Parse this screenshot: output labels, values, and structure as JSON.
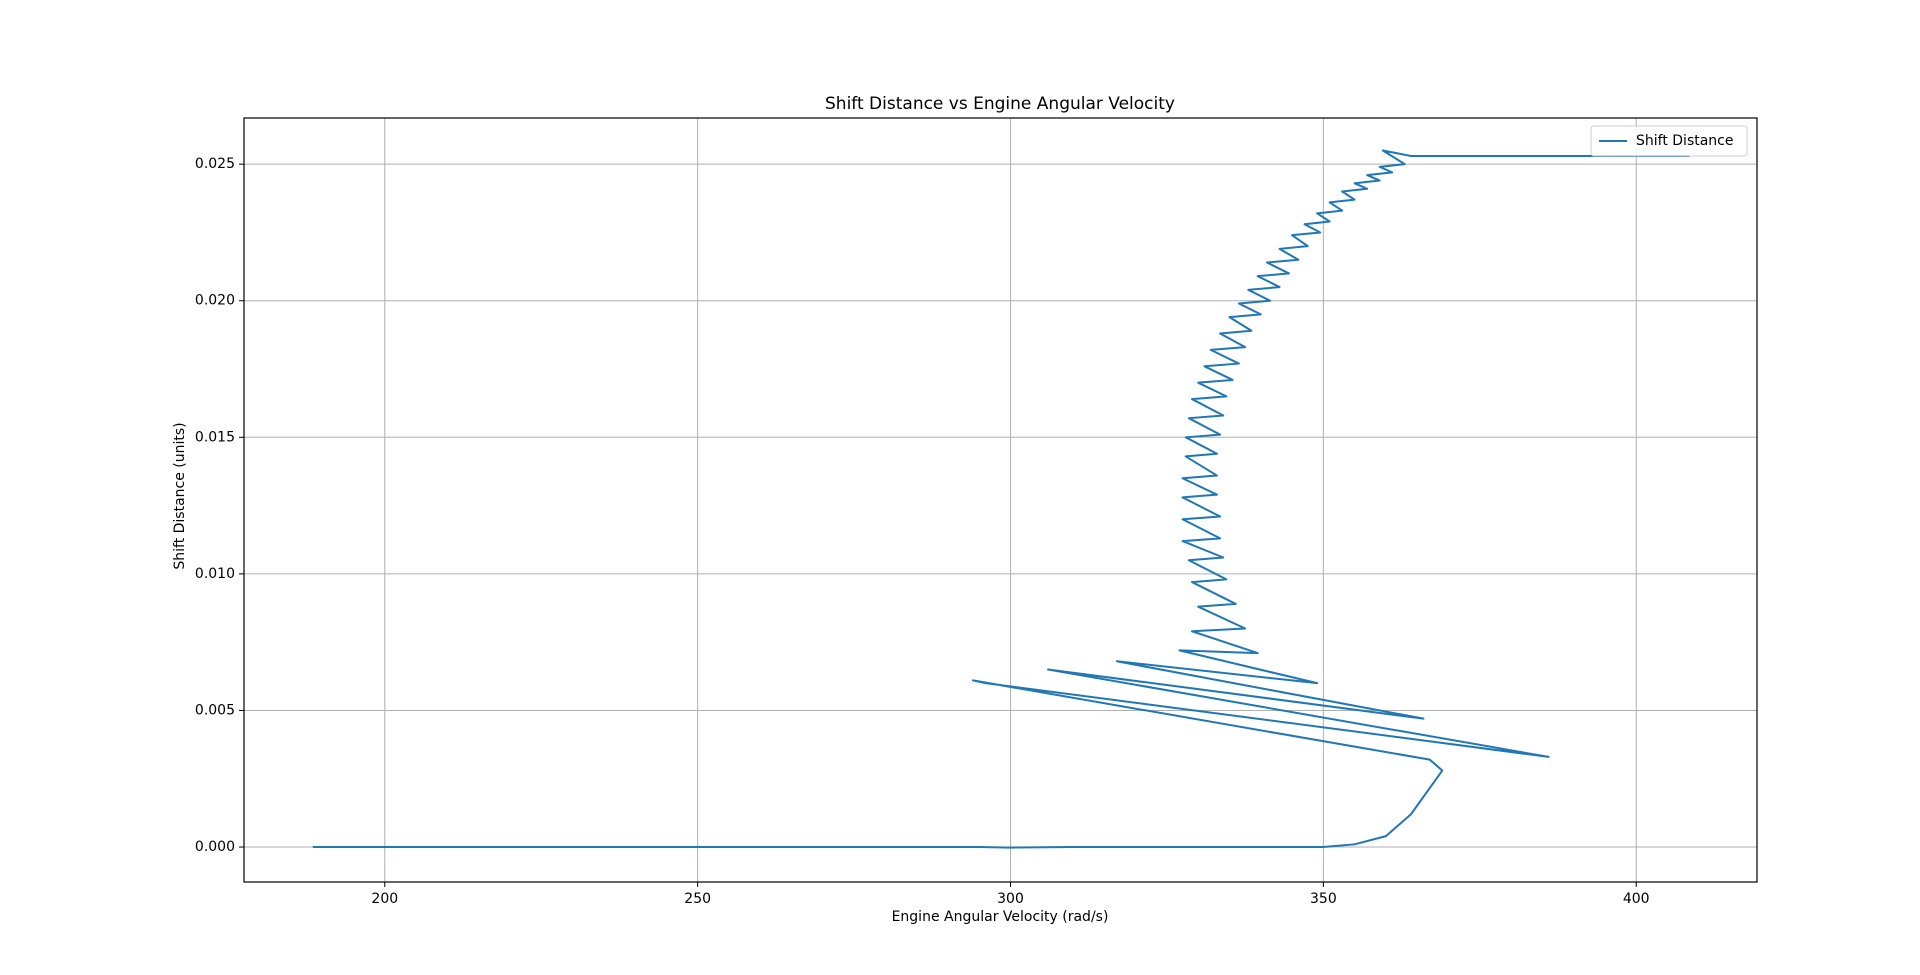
{
  "chart_data": {
    "type": "line",
    "title": "Shift Distance vs Engine Angular Velocity",
    "xlabel": "Engine Angular Velocity (rad/s)",
    "ylabel": "Shift Distance (units)",
    "x": [
      188.5,
      195,
      205,
      215,
      225,
      235,
      245,
      255,
      265,
      275,
      285,
      295,
      300,
      310,
      320,
      330,
      340,
      350,
      355,
      360,
      364,
      369,
      367,
      294,
      296,
      386,
      306,
      366,
      317,
      349,
      327,
      339.5,
      329,
      337.5,
      330,
      336,
      329,
      334.5,
      328.5,
      334,
      327.5,
      333.5,
      327.5,
      333.5,
      327.5,
      333,
      327.5,
      333,
      328,
      333,
      328,
      333.5,
      328.5,
      334,
      329,
      334.5,
      330,
      335.5,
      331,
      336.5,
      332,
      337.5,
      333.5,
      338.5,
      335,
      340,
      336.5,
      341.5,
      338,
      343,
      339.5,
      344.5,
      341,
      346,
      343,
      347.5,
      345,
      349.5,
      347,
      351,
      349,
      353,
      351,
      355,
      353,
      357,
      355,
      359,
      357,
      361,
      359,
      363,
      359.5,
      364,
      408.5
    ],
    "series": [
      {
        "name": "Shift Distance",
        "color": "#1f77b4",
        "values": [
          0,
          0,
          0,
          0,
          0,
          0,
          0,
          0,
          0,
          0,
          0,
          0,
          -2e-05,
          0,
          0,
          0,
          0,
          0,
          0.0001,
          0.0004,
          0.0012,
          0.0028,
          0.0032,
          0.0061,
          0.006,
          0.0033,
          0.0065,
          0.0047,
          0.0068,
          0.006,
          0.0072,
          0.0071,
          0.0079,
          0.008,
          0.0088,
          0.0089,
          0.0097,
          0.0098,
          0.0105,
          0.0106,
          0.0112,
          0.0113,
          0.012,
          0.0121,
          0.0128,
          0.0129,
          0.0135,
          0.0136,
          0.0143,
          0.0144,
          0.015,
          0.0151,
          0.0157,
          0.0158,
          0.0164,
          0.0165,
          0.017,
          0.0171,
          0.0176,
          0.0177,
          0.0182,
          0.0183,
          0.0188,
          0.0189,
          0.0194,
          0.0195,
          0.0199,
          0.02,
          0.0204,
          0.0205,
          0.0209,
          0.021,
          0.0214,
          0.0215,
          0.0219,
          0.022,
          0.0224,
          0.0225,
          0.0228,
          0.0229,
          0.0232,
          0.0233,
          0.0236,
          0.0237,
          0.024,
          0.0241,
          0.0243,
          0.0244,
          0.0246,
          0.0247,
          0.0249,
          0.025,
          0.0255,
          0.0253,
          0.0253
        ]
      }
    ],
    "xlim": [
      177.5,
      419.3
    ],
    "ylim": [
      -0.00128,
      0.02669
    ],
    "xticks": [
      200,
      250,
      300,
      350,
      400
    ],
    "yticks": [
      {
        "value": 0,
        "label": "0.000"
      },
      {
        "value": 0.005,
        "label": "0.005"
      },
      {
        "value": 0.01,
        "label": "0.010"
      },
      {
        "value": 0.015,
        "label": "0.015"
      },
      {
        "value": 0.02,
        "label": "0.020"
      },
      {
        "value": 0.025,
        "label": "0.025"
      }
    ],
    "grid": true,
    "legend": "upper right"
  }
}
